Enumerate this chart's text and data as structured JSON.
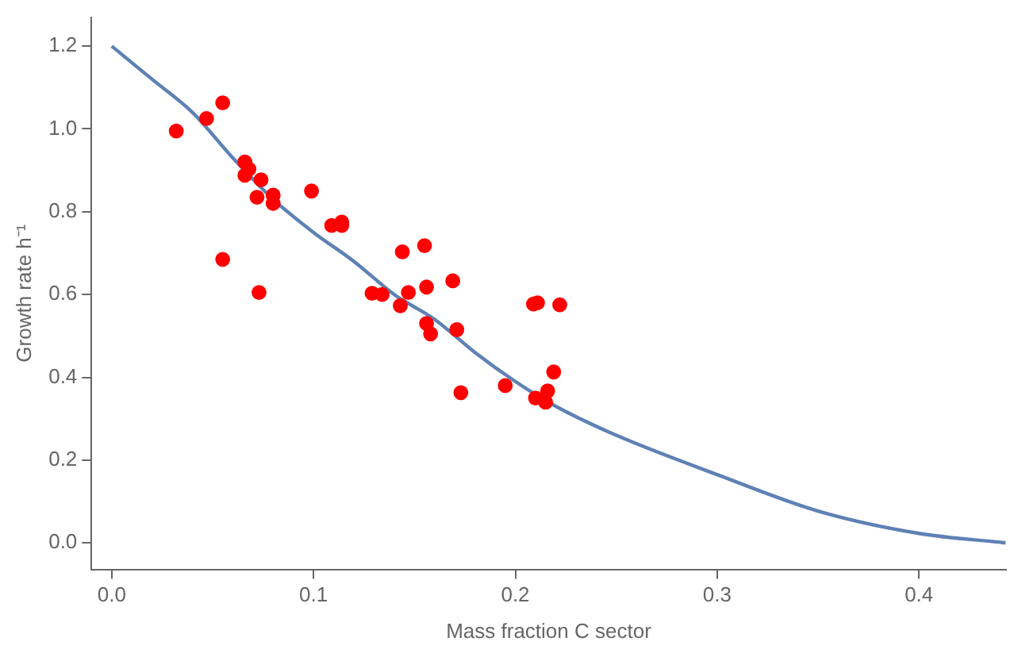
{
  "chart_data": {
    "type": "scatter",
    "xlabel": "Mass fraction C sector",
    "ylabel": "Growth rate h⁻¹",
    "xlim": [
      -0.01,
      0.443
    ],
    "ylim": [
      -0.064,
      1.27
    ],
    "xticks": [
      {
        "value": 0,
        "label": "0.0"
      },
      0.1,
      0.2,
      0.3,
      0.4
    ],
    "yticks": [
      {
        "value": 0,
        "label": "0.0"
      },
      0.2,
      0.4,
      0.6,
      0.8,
      {
        "value": 1,
        "label": "1.0"
      },
      1.2
    ],
    "grid": false,
    "legend": false,
    "series": [
      {
        "type": "line",
        "color": "#5e81b5",
        "marker": "none",
        "line_style": "solid",
        "x": [
          0,
          0.02,
          0.04,
          0.06,
          0.08,
          0.1,
          0.12,
          0.14,
          0.16,
          0.18,
          0.2,
          0.22,
          0.25,
          0.3,
          0.35,
          0.4,
          0.443
        ],
        "values": [
          1.2,
          1.12,
          1.04,
          0.93,
          0.83,
          0.75,
          0.68,
          0.6,
          0.54,
          0.46,
          0.39,
          0.33,
          0.26,
          0.165,
          0.077,
          0.023,
          0.0
        ]
      },
      {
        "color": "#ff0000",
        "marker": "circle",
        "x": [
          0.032,
          0.047,
          0.055,
          0.055,
          0.066,
          0.066,
          0.068,
          0.074,
          0.072,
          0.073,
          0.08,
          0.08,
          0.099,
          0.109,
          0.114,
          0.114,
          0.129,
          0.134,
          0.143,
          0.144,
          0.147,
          0.155,
          0.156,
          0.156,
          0.158,
          0.169,
          0.171,
          0.173,
          0.195,
          0.209,
          0.211,
          0.222,
          0.21,
          0.215,
          0.216,
          0.219
        ],
        "values": [
          0.995,
          1.025,
          1.063,
          0.685,
          0.92,
          0.888,
          0.903,
          0.877,
          0.835,
          0.605,
          0.84,
          0.82,
          0.85,
          0.767,
          0.775,
          0.767,
          0.603,
          0.6,
          0.573,
          0.703,
          0.605,
          0.718,
          0.618,
          0.53,
          0.505,
          0.633,
          0.515,
          0.363,
          0.38,
          0.577,
          0.58,
          0.575,
          0.35,
          0.34,
          0.367,
          0.413
        ]
      }
    ]
  }
}
